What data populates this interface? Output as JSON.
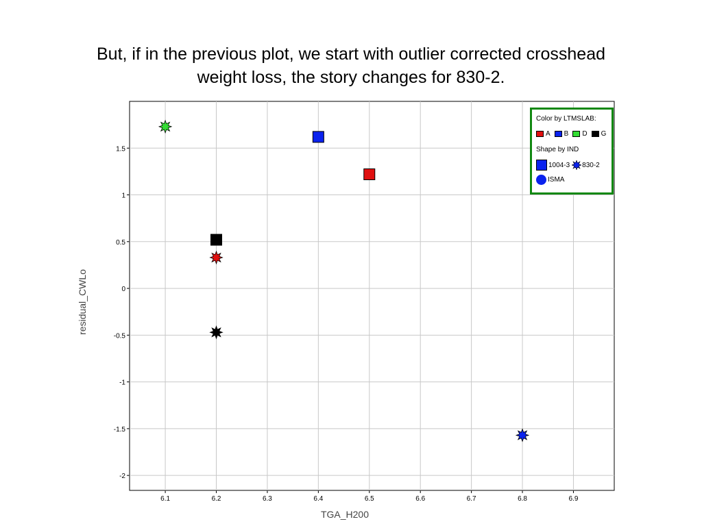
{
  "title_line1": "But, if in the previous plot, we start with outlier corrected crosshead",
  "title_line2": "weight loss, the story changes for 830-2.",
  "colors": {
    "A": "#e01010",
    "B": "#0a22ee",
    "D": "#33dd33",
    "G": "#000000",
    "grid": "#c8c8c8",
    "legend_border": "#118811"
  },
  "legend": {
    "color_title": "Color by LTMSLAB:",
    "color_items": [
      {
        "key": "A",
        "label": "A"
      },
      {
        "key": "B",
        "label": "B"
      },
      {
        "key": "D",
        "label": "D"
      },
      {
        "key": "G",
        "label": "G"
      }
    ],
    "shape_title": "Shape by IND",
    "shape_items": [
      {
        "shape": "square",
        "label": "1004-3"
      },
      {
        "shape": "star",
        "label": "830-2"
      },
      {
        "shape": "circle",
        "label": "ISMA"
      }
    ]
  },
  "chart_data": {
    "type": "scatter",
    "xlabel": "TGA_H200",
    "ylabel": "residual_CWLo",
    "xlim": [
      6.03,
      6.98
    ],
    "ylim": [
      -2.16,
      2.0
    ],
    "x_ticks": [
      6.1,
      6.2,
      6.3,
      6.4,
      6.5,
      6.6,
      6.7,
      6.8,
      6.9
    ],
    "x_tick_labels": [
      "6.1",
      "6.2",
      "6.3",
      "6.4",
      "6.5",
      "6.6",
      "6.7",
      "6.8",
      "6.9"
    ],
    "y_ticks": [
      1.5,
      1,
      0.5,
      0,
      -0.5,
      -1,
      -1.5,
      -2
    ],
    "y_tick_labels": [
      "1.5",
      "1",
      "0.5",
      "0",
      "-0.5",
      "-1",
      "-1.5",
      "-2"
    ],
    "grid": true,
    "legend_position": "top-right",
    "points": [
      {
        "x": 6.1,
        "y": 1.73,
        "lab": "D",
        "ind": "830-2"
      },
      {
        "x": 6.4,
        "y": 1.62,
        "lab": "B",
        "ind": "1004-3"
      },
      {
        "x": 6.5,
        "y": 1.22,
        "lab": "A",
        "ind": "1004-3"
      },
      {
        "x": 6.2,
        "y": 0.52,
        "lab": "G",
        "ind": "1004-3"
      },
      {
        "x": 6.2,
        "y": 0.33,
        "lab": "A",
        "ind": "830-2"
      },
      {
        "x": 6.2,
        "y": -0.47,
        "lab": "G",
        "ind": "830-2"
      },
      {
        "x": 6.8,
        "y": -1.57,
        "lab": "B",
        "ind": "830-2"
      }
    ]
  }
}
